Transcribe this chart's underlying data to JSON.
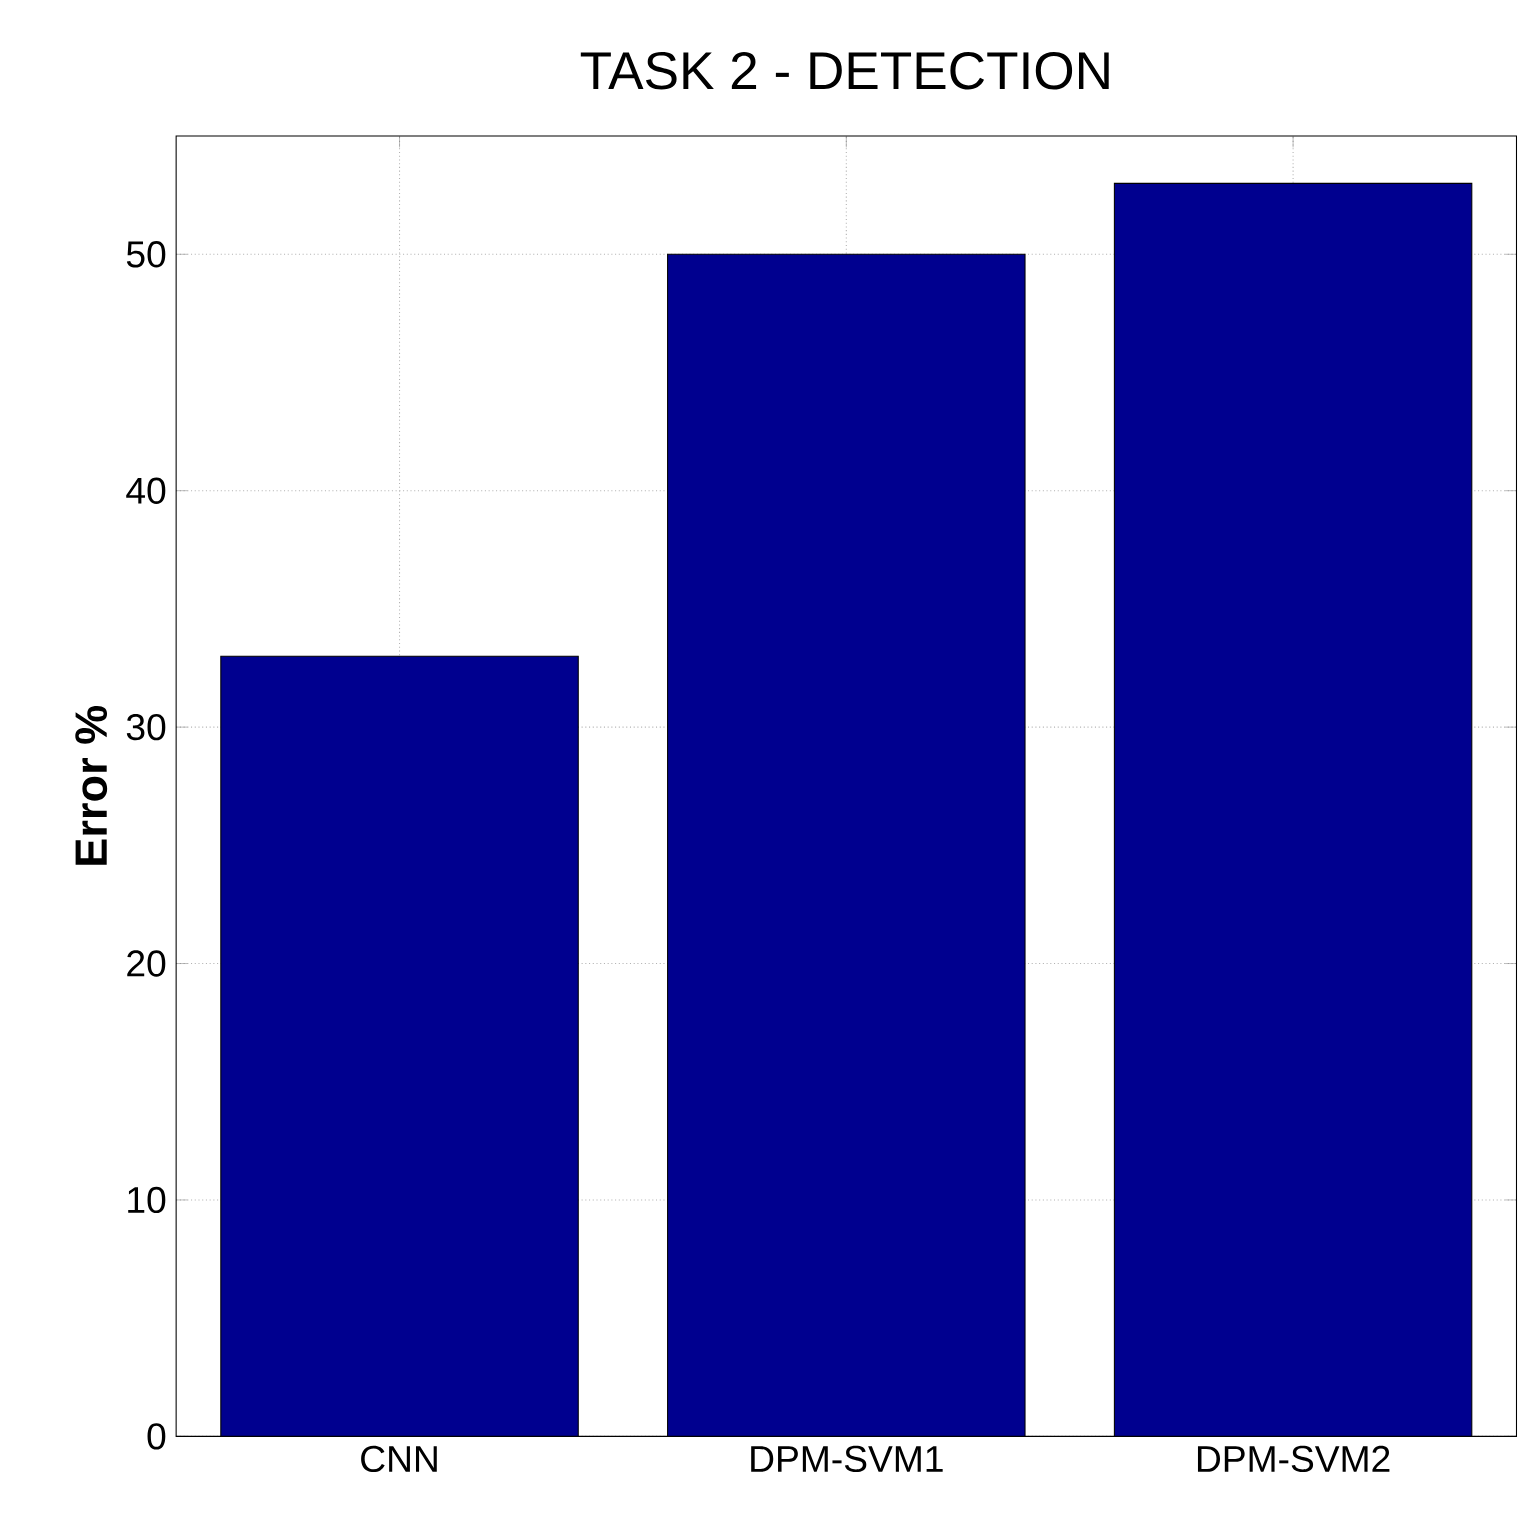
{
  "chart_data": {
    "type": "bar",
    "title": "TASK 2 - DETECTION",
    "ylabel": "Error %",
    "categories": [
      "CNN",
      "DPM-SVM1",
      "DPM-SVM2"
    ],
    "values": [
      33,
      50,
      53
    ],
    "color": "#00008f",
    "ylim": [
      0,
      55
    ],
    "yticks": [
      0,
      10,
      20,
      30,
      40,
      50
    ],
    "grid": true
  }
}
